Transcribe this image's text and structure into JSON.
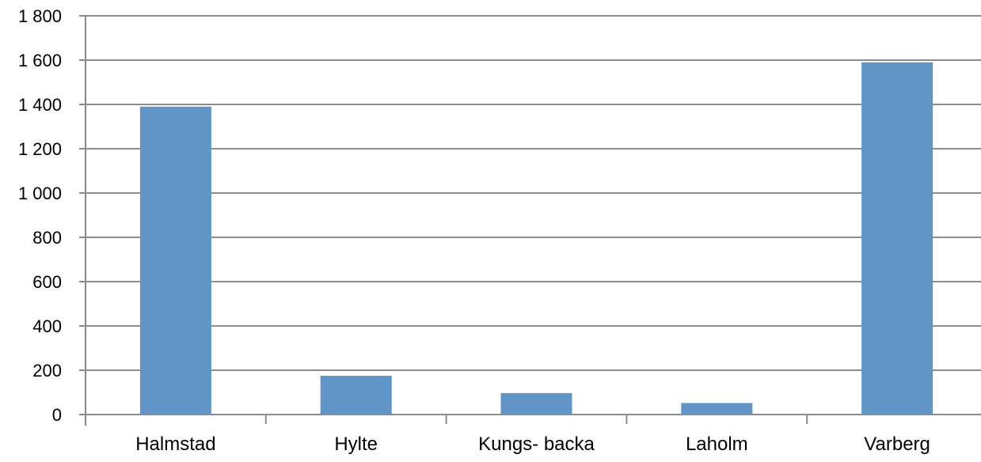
{
  "chart_data": {
    "type": "bar",
    "categories": [
      "Halmstad",
      "Hylte",
      "Kungs- backa",
      "Laholm",
      "Varberg"
    ],
    "values": [
      1390,
      175,
      97,
      52,
      1590
    ],
    "title": "",
    "xlabel": "",
    "ylabel": "",
    "ylim": [
      0,
      1800
    ],
    "yticks": [
      0,
      200,
      400,
      600,
      800,
      1000,
      1200,
      1400,
      1600,
      1800
    ],
    "ytick_labels": [
      "0",
      "200",
      "400",
      "600",
      "800",
      "1 000",
      "1 200",
      "1 400",
      "1 600",
      "1 800"
    ],
    "grid": true,
    "legend": "none",
    "colors": {
      "bar": "#6195C8",
      "grid": "#8C8C8C",
      "axis": "#8C8C8C"
    }
  }
}
